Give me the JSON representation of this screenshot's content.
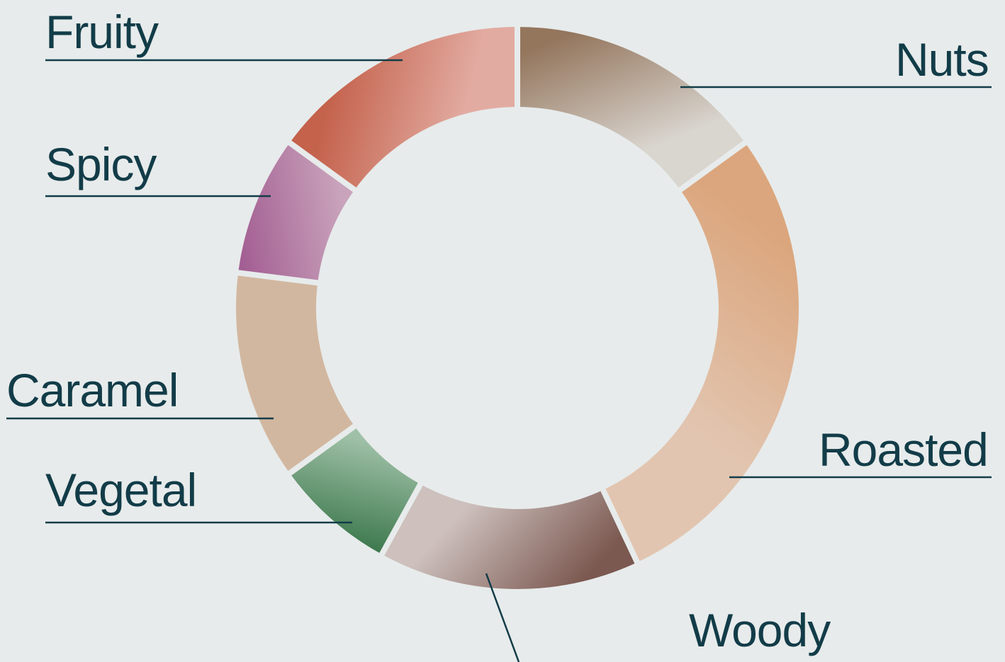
{
  "chart_data": {
    "type": "donut",
    "title": "",
    "categories": [
      "Nuts",
      "Roasted",
      "Woody",
      "Vegetal",
      "Caramel",
      "Spicy",
      "Fruity"
    ],
    "values": [
      15,
      28,
      15,
      7,
      12,
      8,
      15
    ],
    "unit": "%",
    "start_angle_deg": 0,
    "direction": "clockwise",
    "legend": "none",
    "slice_labels": "outside with leader lines",
    "colors": [
      [
        "#94765d",
        "#d9d5cf"
      ],
      [
        "#dba67d",
        "#e2c5b0"
      ],
      [
        "#7b5850",
        "#cdc0bd"
      ],
      [
        "#3f7a4f",
        "#a0c1a8"
      ],
      [
        "#d2b7a0",
        "#d2b7a0"
      ],
      [
        "#a35f93",
        "#c9a3bb"
      ],
      [
        "#c4624c",
        "#e2aba1"
      ]
    ],
    "background": "#e7ebeb",
    "label_color": "#123c48"
  }
}
